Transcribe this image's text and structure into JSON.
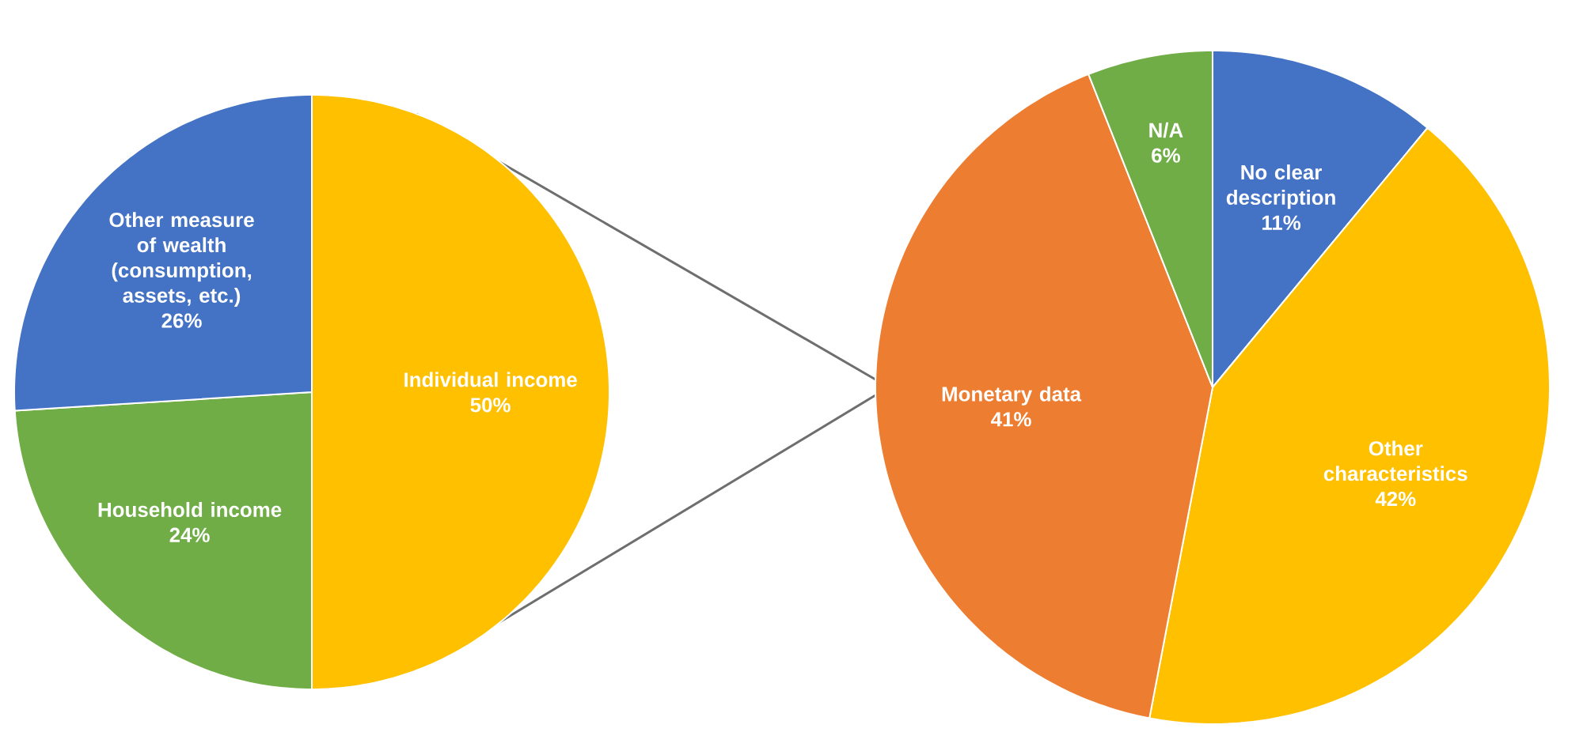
{
  "chart_data": [
    {
      "type": "pie",
      "categories": [
        "Individual income",
        "Household income",
        "Other measure of wealth (consumption, assets, etc.)"
      ],
      "values": [
        50,
        24,
        26
      ],
      "value_labels": [
        "50%",
        "24%",
        "26%"
      ],
      "colors": [
        "#ffc000",
        "#70ad47",
        "#4472c4"
      ]
    },
    {
      "type": "pie",
      "categories": [
        "No clear description",
        "Other characteristics",
        "Monetary data",
        "N/A"
      ],
      "values": [
        11,
        42,
        41,
        6
      ],
      "value_labels": [
        "11%",
        "42%",
        "41%",
        "6%"
      ],
      "colors": [
        "#4472c4",
        "#ffc000",
        "#ed7d31",
        "#70ad47"
      ]
    }
  ]
}
